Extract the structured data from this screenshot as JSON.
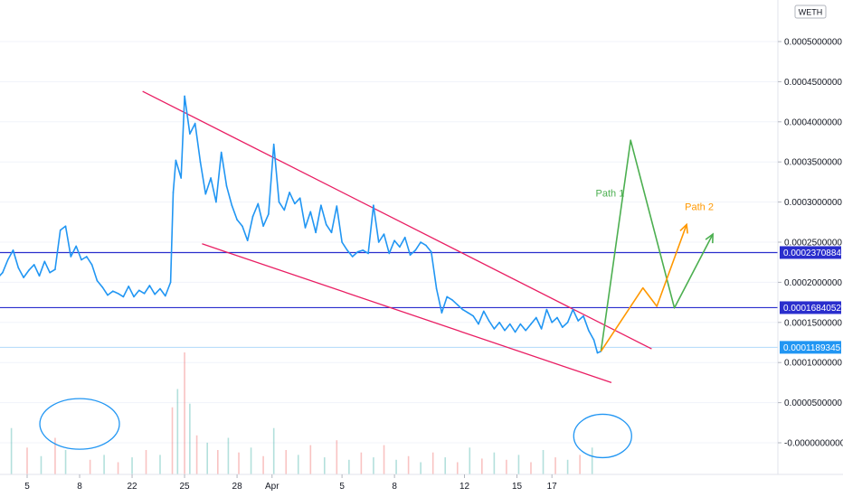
{
  "chart_data": {
    "type": "line",
    "unit_label": "WETH",
    "y_tick_labels": [
      {
        "value": 0.0005,
        "label": "0.0005000000"
      },
      {
        "value": 0.00045,
        "label": "0.0004500000"
      },
      {
        "value": 0.0004,
        "label": "0.0004000000"
      },
      {
        "value": 0.00035,
        "label": "0.0003500000"
      },
      {
        "value": 0.0003,
        "label": "0.0003000000"
      },
      {
        "value": 0.00025,
        "label": "0.0002500000"
      },
      {
        "value": 0.0002,
        "label": "0.0002000000"
      },
      {
        "value": 0.00015,
        "label": "0.0001500000"
      },
      {
        "value": 0.0001,
        "label": "0.0001000000"
      },
      {
        "value": 5e-05,
        "label": "0.0000500000"
      },
      {
        "value": 0.0,
        "label": "-0.0000000000"
      }
    ],
    "x_tick_labels": [
      {
        "x": 5,
        "label": "5"
      },
      {
        "x": 8,
        "label": "8"
      },
      {
        "x": 11,
        "label": "22"
      },
      {
        "x": 14,
        "label": "25"
      },
      {
        "x": 17,
        "label": "28"
      },
      {
        "x": 19,
        "label": "Apr"
      },
      {
        "x": 23,
        "label": "5"
      },
      {
        "x": 26,
        "label": "8"
      },
      {
        "x": 30,
        "label": "12"
      },
      {
        "x": 33,
        "label": "15"
      },
      {
        "x": 35,
        "label": "17"
      }
    ],
    "series": [
      {
        "color": "#2196f3",
        "points": [
          [
            0.0,
            0.000262
          ],
          [
            0.3,
            0.000255
          ],
          [
            0.6,
            0.000241
          ],
          [
            0.9,
            0.000232
          ],
          [
            1.2,
            0.00022
          ],
          [
            1.5,
            0.000245
          ],
          [
            1.8,
            0.000238
          ],
          [
            2.1,
            0.000228
          ],
          [
            2.4,
            0.000218
          ],
          [
            2.7,
            0.000212
          ],
          [
            3.0,
            0.00022
          ],
          [
            3.3,
            0.000205
          ],
          [
            3.6,
            0.000212
          ],
          [
            3.9,
            0.000228
          ],
          [
            4.2,
            0.00024
          ],
          [
            4.5,
            0.000218
          ],
          [
            4.8,
            0.000206
          ],
          [
            5.1,
            0.000215
          ],
          [
            5.4,
            0.000222
          ],
          [
            5.7,
            0.000208
          ],
          [
            6.0,
            0.000226
          ],
          [
            6.3,
            0.000212
          ],
          [
            6.6,
            0.000216
          ],
          [
            6.9,
            0.000265
          ],
          [
            7.2,
            0.00027
          ],
          [
            7.5,
            0.000232
          ],
          [
            7.8,
            0.000245
          ],
          [
            8.1,
            0.000228
          ],
          [
            8.4,
            0.000232
          ],
          [
            8.7,
            0.000222
          ],
          [
            9.0,
            0.000202
          ],
          [
            9.3,
            0.000194
          ],
          [
            9.6,
            0.000184
          ],
          [
            9.9,
            0.000189
          ],
          [
            10.2,
            0.000186
          ],
          [
            10.5,
            0.000182
          ],
          [
            10.8,
            0.000195
          ],
          [
            11.1,
            0.000182
          ],
          [
            11.4,
            0.00019
          ],
          [
            11.7,
            0.000186
          ],
          [
            12.0,
            0.000196
          ],
          [
            12.3,
            0.000185
          ],
          [
            12.6,
            0.000192
          ],
          [
            12.9,
            0.000183
          ],
          [
            13.2,
            0.0002
          ],
          [
            13.35,
            0.000312
          ],
          [
            13.5,
            0.000352
          ],
          [
            13.8,
            0.00033
          ],
          [
            14.0,
            0.000432
          ],
          [
            14.3,
            0.000385
          ],
          [
            14.6,
            0.000398
          ],
          [
            14.9,
            0.00035
          ],
          [
            15.2,
            0.00031
          ],
          [
            15.5,
            0.00033
          ],
          [
            15.8,
            0.0003
          ],
          [
            16.1,
            0.000362
          ],
          [
            16.4,
            0.00032
          ],
          [
            16.7,
            0.000296
          ],
          [
            17.0,
            0.000278
          ],
          [
            17.3,
            0.00027
          ],
          [
            17.6,
            0.000252
          ],
          [
            17.9,
            0.000282
          ],
          [
            18.2,
            0.000298
          ],
          [
            18.5,
            0.00027
          ],
          [
            18.8,
            0.000285
          ],
          [
            19.1,
            0.000372
          ],
          [
            19.4,
            0.0003
          ],
          [
            19.7,
            0.00029
          ],
          [
            20.0,
            0.000312
          ],
          [
            20.3,
            0.000298
          ],
          [
            20.6,
            0.000305
          ],
          [
            20.9,
            0.000268
          ],
          [
            21.2,
            0.000288
          ],
          [
            21.5,
            0.000262
          ],
          [
            21.8,
            0.000296
          ],
          [
            22.1,
            0.000272
          ],
          [
            22.4,
            0.000262
          ],
          [
            22.7,
            0.000295
          ],
          [
            23.0,
            0.00025
          ],
          [
            23.3,
            0.00024
          ],
          [
            23.6,
            0.000232
          ],
          [
            23.9,
            0.000238
          ],
          [
            24.2,
            0.00024
          ],
          [
            24.5,
            0.000236
          ],
          [
            24.8,
            0.000296
          ],
          [
            25.1,
            0.00025
          ],
          [
            25.4,
            0.00026
          ],
          [
            25.7,
            0.000236
          ],
          [
            26.0,
            0.000252
          ],
          [
            26.3,
            0.000244
          ],
          [
            26.6,
            0.000256
          ],
          [
            26.9,
            0.000234
          ],
          [
            27.2,
            0.00024
          ],
          [
            27.5,
            0.00025
          ],
          [
            27.8,
            0.000246
          ],
          [
            28.1,
            0.000238
          ],
          [
            28.4,
            0.000192
          ],
          [
            28.7,
            0.000162
          ],
          [
            29.0,
            0.000182
          ],
          [
            29.3,
            0.000178
          ],
          [
            29.6,
            0.000172
          ],
          [
            29.9,
            0.000166
          ],
          [
            30.2,
            0.000162
          ],
          [
            30.5,
            0.000158
          ],
          [
            30.8,
            0.000148
          ],
          [
            31.1,
            0.000164
          ],
          [
            31.4,
            0.000152
          ],
          [
            31.7,
            0.000142
          ],
          [
            32.0,
            0.00015
          ],
          [
            32.3,
            0.00014
          ],
          [
            32.6,
            0.000148
          ],
          [
            32.9,
            0.000138
          ],
          [
            33.2,
            0.000148
          ],
          [
            33.5,
            0.00014
          ],
          [
            33.8,
            0.000148
          ],
          [
            34.1,
            0.000156
          ],
          [
            34.4,
            0.000142
          ],
          [
            34.7,
            0.000166
          ],
          [
            35.0,
            0.00015
          ],
          [
            35.3,
            0.000156
          ],
          [
            35.6,
            0.000144
          ],
          [
            35.9,
            0.00015
          ],
          [
            36.2,
            0.000166
          ],
          [
            36.5,
            0.000152
          ],
          [
            36.8,
            0.000158
          ],
          [
            37.1,
            0.00014
          ],
          [
            37.4,
            0.000128
          ],
          [
            37.6,
            0.000112
          ],
          [
            37.8,
            0.000114
          ]
        ]
      }
    ],
    "horizontal_levels": [
      {
        "value": 0.0002370884,
        "label": "0.0002370884",
        "color": "#2a2ecd"
      },
      {
        "value": 0.0001684052,
        "label": "0.0001684052",
        "color": "#2a2ecd"
      },
      {
        "value": 0.0001189345,
        "label": "0.0001189345",
        "color": "#2196f3"
      }
    ],
    "trendlines": [
      {
        "color": "#e91e63",
        "from": [
          11.6,
          0.000438
        ],
        "to": [
          40.7,
          0.000117
        ]
      },
      {
        "color": "#e91e63",
        "from": [
          15.0,
          0.000248
        ],
        "to": [
          38.4,
          7.5e-05
        ]
      }
    ],
    "projections": [
      {
        "label": "Path 1",
        "color": "#4caf50",
        "points": [
          [
            37.8,
            0.000114
          ],
          [
            39.5,
            0.000377
          ],
          [
            42.0,
            0.000168
          ],
          [
            44.2,
            0.00026
          ]
        ]
      },
      {
        "label": "Path 2",
        "color": "#ff9800",
        "points": [
          [
            37.8,
            0.000114
          ],
          [
            40.2,
            0.000193
          ],
          [
            41.0,
            0.00017
          ],
          [
            42.7,
            0.000272
          ]
        ]
      }
    ],
    "annotations": [
      {
        "type": "circle",
        "color": "#2196f3",
        "center": [
          8.0,
          2.35e-05
        ]
      },
      {
        "type": "circle",
        "color": "#2196f3",
        "center": [
          37.9,
          8.5e-06
        ]
      }
    ],
    "volume_bars": [
      {
        "x": 1.9,
        "v": 0.42
      },
      {
        "x": 2.6,
        "v": 0.18
      },
      {
        "x": 3.4,
        "v": 0.25
      },
      {
        "x": 4.1,
        "v": 0.38
      },
      {
        "x": 5.0,
        "v": 0.22
      },
      {
        "x": 5.8,
        "v": 0.15
      },
      {
        "x": 6.6,
        "v": 0.3
      },
      {
        "x": 7.2,
        "v": 0.2
      },
      {
        "x": 8.6,
        "v": 0.12
      },
      {
        "x": 9.4,
        "v": 0.16
      },
      {
        "x": 10.2,
        "v": 0.1
      },
      {
        "x": 11.0,
        "v": 0.14
      },
      {
        "x": 11.8,
        "v": 0.2
      },
      {
        "x": 12.6,
        "v": 0.16
      },
      {
        "x": 13.3,
        "v": 0.55
      },
      {
        "x": 13.6,
        "v": 0.7
      },
      {
        "x": 14.0,
        "v": 1.0
      },
      {
        "x": 14.3,
        "v": 0.58
      },
      {
        "x": 14.7,
        "v": 0.32
      },
      {
        "x": 15.3,
        "v": 0.26
      },
      {
        "x": 15.9,
        "v": 0.2
      },
      {
        "x": 16.5,
        "v": 0.3
      },
      {
        "x": 17.1,
        "v": 0.18
      },
      {
        "x": 17.8,
        "v": 0.22
      },
      {
        "x": 18.5,
        "v": 0.15
      },
      {
        "x": 19.1,
        "v": 0.38
      },
      {
        "x": 19.8,
        "v": 0.2
      },
      {
        "x": 20.5,
        "v": 0.16
      },
      {
        "x": 21.2,
        "v": 0.24
      },
      {
        "x": 22.0,
        "v": 0.14
      },
      {
        "x": 22.7,
        "v": 0.28
      },
      {
        "x": 23.4,
        "v": 0.12
      },
      {
        "x": 24.1,
        "v": 0.18
      },
      {
        "x": 24.8,
        "v": 0.14
      },
      {
        "x": 25.4,
        "v": 0.24
      },
      {
        "x": 26.1,
        "v": 0.12
      },
      {
        "x": 26.8,
        "v": 0.15
      },
      {
        "x": 27.5,
        "v": 0.1
      },
      {
        "x": 28.2,
        "v": 0.18
      },
      {
        "x": 28.9,
        "v": 0.14
      },
      {
        "x": 29.6,
        "v": 0.1
      },
      {
        "x": 30.3,
        "v": 0.22
      },
      {
        "x": 31.0,
        "v": 0.13
      },
      {
        "x": 31.7,
        "v": 0.18
      },
      {
        "x": 32.4,
        "v": 0.12
      },
      {
        "x": 33.1,
        "v": 0.16
      },
      {
        "x": 33.8,
        "v": 0.1
      },
      {
        "x": 34.5,
        "v": 0.2
      },
      {
        "x": 35.2,
        "v": 0.14
      },
      {
        "x": 35.9,
        "v": 0.12
      },
      {
        "x": 36.6,
        "v": 0.16
      },
      {
        "x": 37.3,
        "v": 0.22
      }
    ]
  }
}
